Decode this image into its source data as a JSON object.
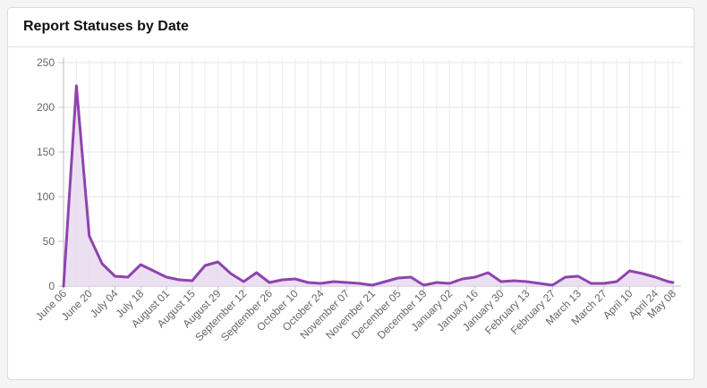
{
  "card": {
    "title": "Report Statuses by Date"
  },
  "chart_data": {
    "type": "area",
    "title": "Report Statuses by Date",
    "xlabel": "",
    "ylabel": "",
    "ylim": [
      0,
      250
    ],
    "yticks": [
      0,
      50,
      100,
      150,
      200,
      250
    ],
    "grid": true,
    "legend": "none",
    "tick_labels": [
      "June 06",
      "June 20",
      "July 04",
      "July 18",
      "August 01",
      "August 15",
      "August 29",
      "September 12",
      "September 26",
      "October 10",
      "October 24",
      "November 07",
      "November 21",
      "December 05",
      "December 19",
      "January 02",
      "January 16",
      "January 30",
      "February 13",
      "February 27",
      "March 13",
      "March 27",
      "April 10",
      "April 24",
      "May 08"
    ],
    "series": [
      {
        "color": "#8e44ad",
        "fill": "#e8d9f0",
        "values": [
          0,
          224,
          56,
          25,
          11,
          10,
          24,
          17,
          10,
          7,
          6,
          23,
          27,
          14,
          5,
          15,
          4,
          7,
          8,
          4,
          3,
          5,
          4,
          3,
          1,
          5,
          9,
          10,
          1,
          4,
          3,
          8,
          10,
          15,
          5,
          6,
          5,
          3,
          1,
          10,
          11,
          3,
          3,
          5,
          17,
          14,
          10,
          5,
          4
        ]
      }
    ]
  }
}
